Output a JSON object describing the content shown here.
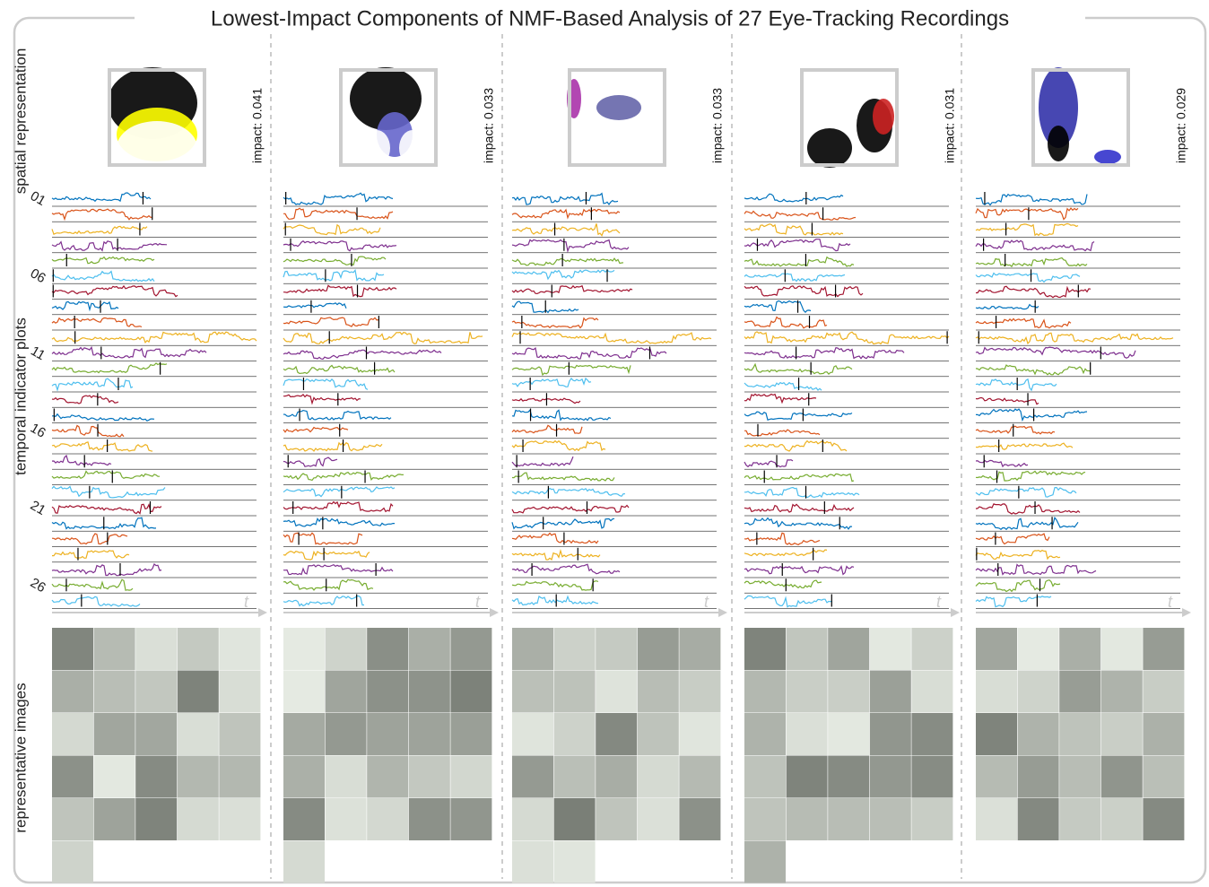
{
  "title": "Lowest-Impact Components of NMF-Based Analysis of 27 Eye-Tracking Recordings",
  "side_labels": {
    "spatial": "spatial representation",
    "temporal": "temporal indicator plots",
    "images": "representative images"
  },
  "row_labels": [
    "01",
    "06",
    "11",
    "16",
    "21",
    "26"
  ],
  "time_axis_label": "t",
  "panels": [
    {
      "impact": "impact: 0.041"
    },
    {
      "impact": "impact: 0.033"
    },
    {
      "impact": "impact: 0.033"
    },
    {
      "impact": "impact: 0.031"
    },
    {
      "impact": "impact: 0.029"
    }
  ]
}
